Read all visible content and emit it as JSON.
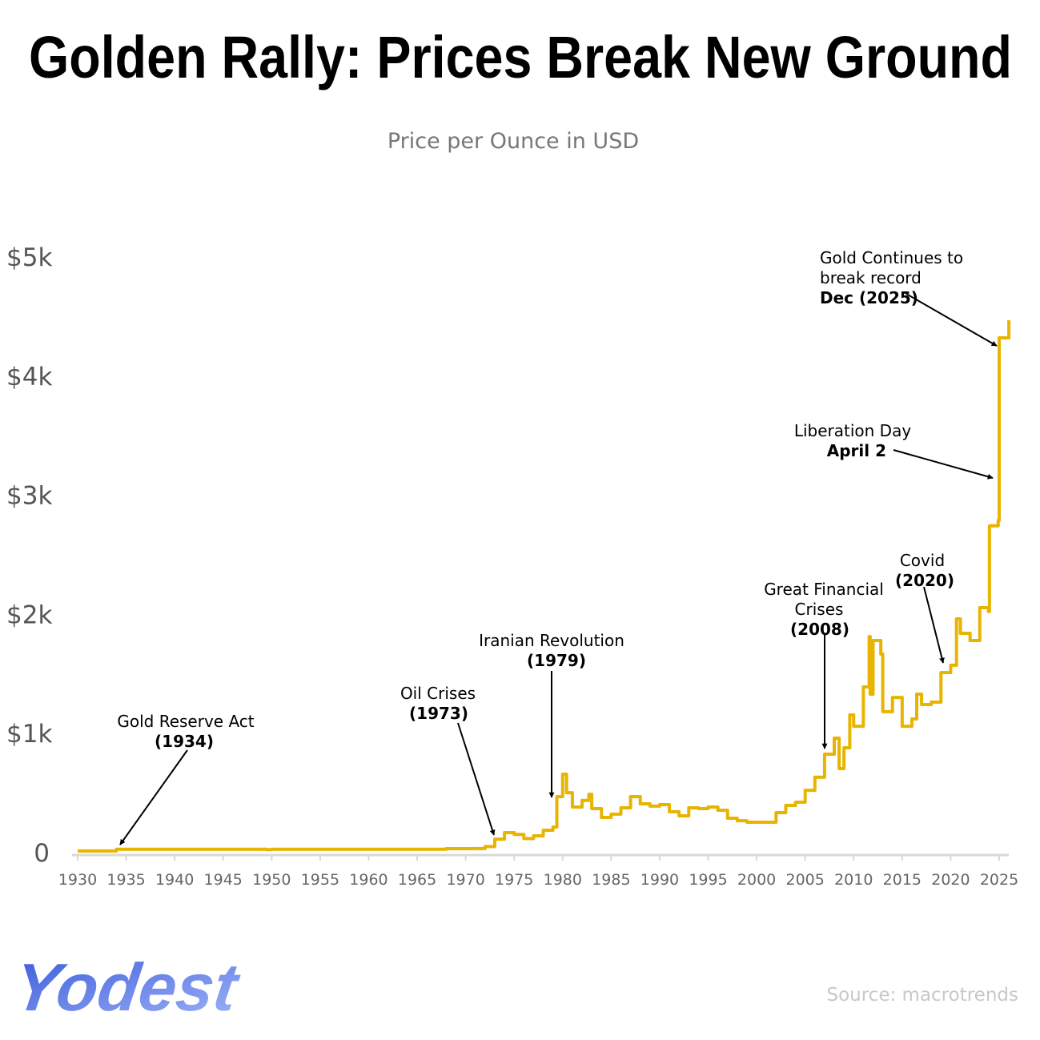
{
  "title": "Golden Rally: Prices Break New Ground",
  "subtitle": "Price per Ounce in USD",
  "source": "Source: macrotrends",
  "logo_text": "Yodest",
  "colors": {
    "line": "#E8B400",
    "axis": "#d9d9d9",
    "logo_start": "#3b5bdb",
    "logo_end": "#8fa8f5"
  },
  "chart_data": {
    "type": "line",
    "title": "Golden Rally: Prices Break New Ground",
    "subtitle": "Price per Ounce in USD",
    "xlabel": "",
    "ylabel": "",
    "xlim": [
      1930,
      2026
    ],
    "ylim": [
      0,
      5000
    ],
    "grid": false,
    "y_ticks": [
      {
        "value": 0,
        "label": "0"
      },
      {
        "value": 1000,
        "label": "$1k"
      },
      {
        "value": 2000,
        "label": "$2k"
      },
      {
        "value": 3000,
        "label": "$3k"
      },
      {
        "value": 4000,
        "label": "$4k"
      },
      {
        "value": 5000,
        "label": "$5k"
      }
    ],
    "x_ticks": [
      "1930",
      "1935",
      "1940",
      "1945",
      "1950",
      "1955",
      "1960",
      "1965",
      "1970",
      "1975",
      "1980",
      "1985",
      "1990",
      "1995",
      "2000",
      "2005",
      "2010",
      "2015",
      "2020",
      "2025"
    ],
    "series": [
      {
        "x": [
          1930,
          1933,
          1934,
          1948.5,
          1949.5,
          1950,
          1967,
          1968,
          1971,
          1972,
          1973,
          1974,
          1975,
          1976,
          1977,
          1978,
          1979,
          1979.4,
          1980,
          1980.4,
          1981,
          1982,
          1982.7,
          1983,
          1984,
          1985,
          1986,
          1987,
          1988,
          1989,
          1990,
          1991,
          1992,
          1993,
          1994,
          1995,
          1996,
          1997,
          1998,
          1999,
          2000,
          2001,
          2002,
          2003,
          2004,
          2005,
          2006,
          2007,
          2008,
          2008.5,
          2009,
          2009.6,
          2010,
          2011,
          2011.6,
          2011.7,
          2012,
          2012.8,
          2013,
          2014,
          2015,
          2016,
          2016.5,
          2017,
          2018,
          2019,
          2020,
          2020.6,
          2021,
          2022,
          2023,
          2023.9,
          2024,
          2024.9,
          2025,
          2026
        ],
        "y": [
          20.67,
          20.67,
          35,
          35,
          31.7,
          35,
          35,
          40,
          41,
          58,
          120,
          175,
          160,
          125,
          148,
          195,
          222,
          477,
          665,
          510,
          390,
          445,
          497,
          376,
          302,
          330,
          383,
          477,
          417,
          397,
          410,
          350,
          316,
          383,
          376,
          390,
          363,
          296,
          275,
          262,
          262,
          262,
          343,
          403,
          430,
          530,
          640,
          833,
          968,
          712,
          887,
          1163,
          1068,
          1398,
          1820,
          1337,
          1788,
          1673,
          1190,
          1310,
          1068,
          1129,
          1337,
          1250,
          1270,
          1519,
          1580,
          1969,
          1848,
          1788,
          2063,
          2030,
          2750,
          2795,
          4328,
          4476
        ]
      }
    ],
    "annotations": [
      {
        "text": "Gold Reserve Act",
        "bold": "(1934)",
        "year": 1934
      },
      {
        "text": "Oil Crises",
        "bold": "(1973)",
        "year": 1973
      },
      {
        "text": "Iranian Revolution",
        "bold": "(1979)",
        "year": 1979
      },
      {
        "text": "Great Financial",
        "text2": "Crises",
        "bold": "(2008)",
        "year": 2008
      },
      {
        "text": "Covid",
        "bold": "(2020)",
        "year": 2020
      },
      {
        "text": "Liberation Day",
        "bold": "April 2",
        "year": 2025
      },
      {
        "text": "Gold Continues to",
        "text2": "break record",
        "bold": "Dec (2025)",
        "year": 2025
      }
    ]
  }
}
